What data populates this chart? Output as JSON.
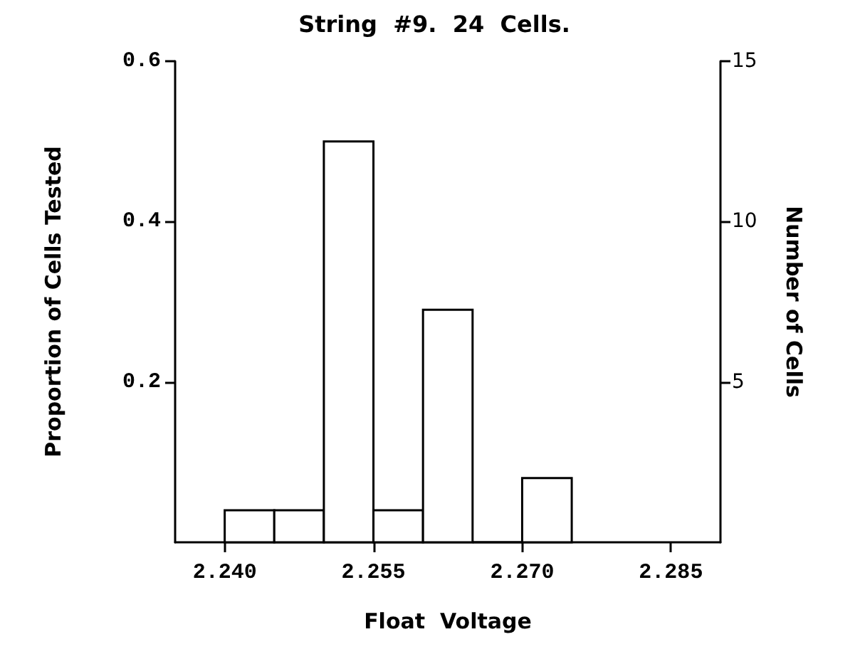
{
  "chart_data": {
    "type": "histogram",
    "title": "String  #9.  24  Cells.",
    "xlabel": "Float  Voltage",
    "ylabel": "Proportion of Cells Tested",
    "y2label": "Number of Cells",
    "bins": [
      2.24,
      2.245,
      2.25,
      2.255,
      2.26,
      2.265,
      2.27,
      2.275
    ],
    "values": [
      0.04,
      0.04,
      0.5,
      0.04,
      0.29,
      0,
      0.08
    ],
    "color": "#ffffff",
    "xlim": [
      2.235,
      2.29
    ],
    "xticks": [
      {
        "value": 2.24,
        "label": "2.240"
      },
      {
        "value": 2.255,
        "label": "2.255"
      },
      {
        "value": 2.27,
        "label": "2.270"
      },
      {
        "value": 2.285,
        "label": "2.285"
      }
    ],
    "ylim": [
      0,
      0.6
    ],
    "yticks": [
      0.2,
      0.4,
      0.6
    ],
    "y2lim": [
      0,
      15
    ],
    "y2ticks": [
      5,
      10,
      15
    ],
    "grid": false
  }
}
